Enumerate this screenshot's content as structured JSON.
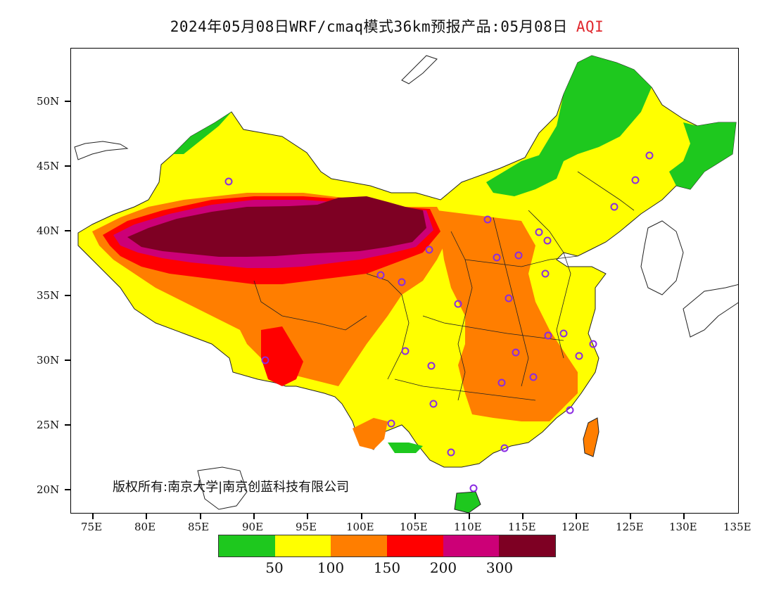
{
  "header": {
    "title": "2024年05月08日WRF/cmaq模式36km预报产品:05月08日",
    "variable": "AQI"
  },
  "map": {
    "lat_labels": [
      "50N",
      "45N",
      "40N",
      "35N",
      "30N",
      "25N",
      "20N"
    ],
    "lon_labels": [
      "75E",
      "80E",
      "85E",
      "90E",
      "95E",
      "100E",
      "105E",
      "110E",
      "115E",
      "120E",
      "125E",
      "130E",
      "135E"
    ],
    "copyright": "版权所有:南京大学|南京创蓝科技有限公司"
  },
  "legend": {
    "colors": [
      "#1ec81e",
      "#ffff00",
      "#ff7e00",
      "#ff0000",
      "#cc0077",
      "#7e0023"
    ],
    "thresholds": [
      "50",
      "100",
      "150",
      "200",
      "300"
    ]
  }
}
